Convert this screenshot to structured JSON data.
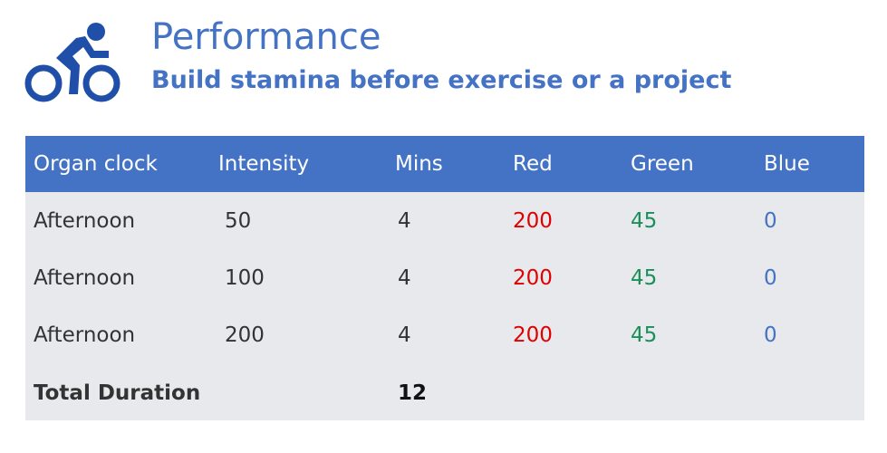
{
  "header": {
    "title": "Performance",
    "subtitle": "Build stamina before exercise or a project"
  },
  "table": {
    "columns": [
      "Organ clock",
      "Intensity",
      "Mins",
      "Red",
      "Green",
      "Blue"
    ],
    "rows": [
      [
        "Afternoon",
        50,
        4,
        200,
        45,
        0
      ],
      [
        "Afternoon",
        100,
        4,
        200,
        45,
        0
      ],
      [
        "Afternoon",
        200,
        4,
        200,
        45,
        0
      ]
    ],
    "total": {
      "label": "Total Duration",
      "value": 12
    }
  }
}
